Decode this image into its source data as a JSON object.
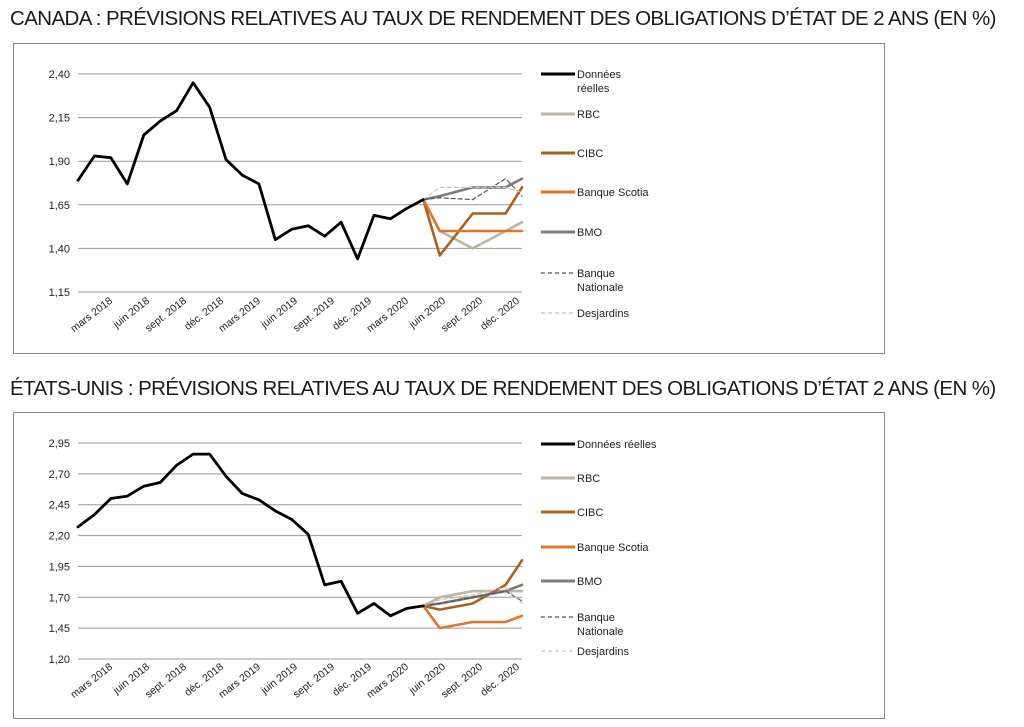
{
  "titles": {
    "canada": "CANADA : PRÉVISIONS RELATIVES AU TAUX DE RENDEMENT DES OBLIGATIONS D’ÉTAT DE 2 ANS (EN %)",
    "usa": "ÉTATS-UNIS : PRÉVISIONS RELATIVES AU TAUX DE RENDEMENT DES OBLIGATIONS D’ÉTAT 2 ANS (EN %)"
  },
  "chart_data": [
    {
      "type": "line",
      "title": "CANADA : PRÉVISIONS RELATIVES AU TAUX DE RENDEMENT DES OBLIGATIONS D’ÉTAT DE 2 ANS (EN %)",
      "x_tick_labels": [
        "mars 2018",
        "juin 2018",
        "sept. 2018",
        "déc. 2018",
        "mars 2019",
        "juin 2019",
        "sept. 2019",
        "déc. 2019",
        "mars 2020",
        "juin 2020",
        "sept. 2020",
        "déc. 2020"
      ],
      "y_tick_labels": [
        "1,15",
        "1,40",
        "1,65",
        "1,90",
        "2,15",
        "2,40"
      ],
      "ylim": [
        1.15,
        2.4
      ],
      "grid": "horizontal",
      "legend_position": "right",
      "series": [
        {
          "name": "Données réelles",
          "color": "#000000",
          "style": "solid",
          "x": [
            0,
            1,
            2,
            3,
            4,
            5,
            6,
            7,
            8,
            9,
            10,
            11,
            12,
            13,
            14,
            15,
            16,
            17,
            18,
            19,
            20,
            21
          ],
          "y": [
            1.79,
            1.93,
            1.92,
            1.77,
            2.05,
            2.13,
            2.19,
            2.35,
            2.21,
            1.91,
            1.82,
            1.77,
            1.45,
            1.51,
            1.53,
            1.47,
            1.55,
            1.34,
            1.59,
            1.57,
            1.63,
            1.68
          ]
        },
        {
          "name": "RBC",
          "color": "#bdb5a7",
          "style": "solid",
          "x": [
            21,
            22,
            24,
            26,
            27
          ],
          "y": [
            1.68,
            1.5,
            1.4,
            1.5,
            1.55
          ]
        },
        {
          "name": "CIBC",
          "color": "#a8611f",
          "style": "solid",
          "x": [
            21,
            22,
            24,
            26,
            27
          ],
          "y": [
            1.68,
            1.36,
            1.6,
            1.6,
            1.75
          ]
        },
        {
          "name": "Banque Scotia",
          "color": "#e0752a",
          "style": "solid",
          "x": [
            21,
            22,
            24,
            26,
            27
          ],
          "y": [
            1.68,
            1.5,
            1.5,
            1.5,
            1.5
          ]
        },
        {
          "name": "BMO",
          "color": "#807c7c",
          "style": "solid",
          "x": [
            21,
            22,
            24,
            26,
            27
          ],
          "y": [
            1.68,
            1.7,
            1.75,
            1.75,
            1.8
          ]
        },
        {
          "name": "Banque\nNationale",
          "color": "#555555",
          "style": "dashed",
          "x": [
            21,
            22,
            24,
            26,
            27
          ],
          "y": [
            1.68,
            1.69,
            1.68,
            1.8,
            1.7
          ]
        },
        {
          "name": "Desjardins",
          "color": "#c9c4b0",
          "style": "dashed",
          "x": [
            21,
            22,
            24,
            26,
            27
          ],
          "y": [
            1.68,
            1.75,
            1.75,
            1.75,
            1.72
          ]
        }
      ]
    },
    {
      "type": "line",
      "title": "ÉTATS-UNIS : PRÉVISIONS RELATIVES AU TAUX DE RENDEMENT DES OBLIGATIONS D’ÉTAT 2 ANS (EN %)",
      "x_tick_labels": [
        "mars 2018",
        "juin 2018",
        "sept. 2018",
        "déc. 2018",
        "mars 2019",
        "juin 2019",
        "sept. 2019",
        "déc. 2019",
        "mars 2020",
        "juin 2020",
        "sept. 2020",
        "déc. 2020"
      ],
      "y_tick_labels": [
        "1,20",
        "1,45",
        "1,70",
        "1,95",
        "2,20",
        "2,45",
        "2,70",
        "2,95"
      ],
      "ylim": [
        1.2,
        2.95
      ],
      "grid": "horizontal",
      "legend_position": "right",
      "series": [
        {
          "name": "Données réelles",
          "color": "#000000",
          "style": "solid",
          "x": [
            0,
            1,
            2,
            3,
            4,
            5,
            6,
            7,
            8,
            9,
            10,
            11,
            12,
            13,
            14,
            15,
            16,
            17,
            18,
            19,
            20,
            21
          ],
          "y": [
            2.27,
            2.37,
            2.5,
            2.52,
            2.6,
            2.63,
            2.77,
            2.86,
            2.86,
            2.68,
            2.54,
            2.49,
            2.4,
            2.33,
            2.21,
            1.8,
            1.83,
            1.57,
            1.65,
            1.55,
            1.61,
            1.63
          ]
        },
        {
          "name": "RBC",
          "color": "#bdb5a7",
          "style": "solid",
          "x": [
            21,
            22,
            24,
            26,
            27
          ],
          "y": [
            1.63,
            1.7,
            1.75,
            1.75,
            1.75
          ]
        },
        {
          "name": "CIBC",
          "color": "#a8611f",
          "style": "solid",
          "x": [
            21,
            22,
            24,
            26,
            27
          ],
          "y": [
            1.63,
            1.6,
            1.65,
            1.8,
            2.0
          ]
        },
        {
          "name": "Banque Scotia",
          "color": "#e0752a",
          "style": "solid",
          "x": [
            21,
            22,
            24,
            26,
            27
          ],
          "y": [
            1.63,
            1.45,
            1.5,
            1.5,
            1.55
          ]
        },
        {
          "name": "BMO",
          "color": "#807c7c",
          "style": "solid",
          "x": [
            21,
            22,
            24,
            26,
            27
          ],
          "y": [
            1.63,
            1.65,
            1.7,
            1.75,
            1.8
          ]
        },
        {
          "name": "Banque\nNationale",
          "color": "#555555",
          "style": "dashed",
          "x": [
            21,
            22,
            24,
            26,
            27
          ],
          "y": [
            1.63,
            1.65,
            1.7,
            1.75,
            1.67
          ]
        },
        {
          "name": "Desjardins",
          "color": "#c9c4b0",
          "style": "dashed",
          "x": [
            21,
            22,
            24,
            26,
            27
          ],
          "y": [
            1.63,
            1.68,
            1.72,
            1.78,
            1.65
          ]
        }
      ]
    }
  ]
}
